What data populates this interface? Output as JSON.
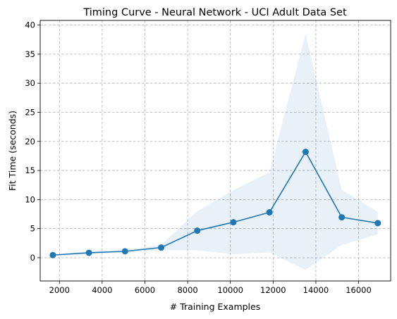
{
  "chart_data": {
    "type": "line",
    "title": "Timing Curve - Neural Network - UCI Adult Data Set",
    "xlabel": "# Training Examples",
    "ylabel": "Fit Time (seconds)",
    "xlim": [
      1100,
      17500
    ],
    "ylim": [
      -4,
      40.8
    ],
    "xticks": [
      2000,
      4000,
      6000,
      8000,
      10000,
      12000,
      14000,
      16000
    ],
    "yticks": [
      0,
      5,
      10,
      15,
      20,
      25,
      30,
      35,
      40
    ],
    "grid": true,
    "grid_style": "dashed",
    "series": [
      {
        "color": "#1f77b4",
        "band_color": "#1f77b4",
        "x": [
          1690,
          3380,
          5070,
          6760,
          8450,
          10140,
          11830,
          13520,
          15210,
          16900
        ],
        "y": [
          0.45,
          0.85,
          1.1,
          1.75,
          4.65,
          6.1,
          7.8,
          18.2,
          6.95,
          5.95
        ],
        "y_lower": [
          0.35,
          0.6,
          0.9,
          1.3,
          1.3,
          0.6,
          0.9,
          -2.1,
          2.2,
          4.0
        ],
        "y_upper": [
          0.55,
          1.1,
          1.3,
          2.2,
          8.0,
          11.6,
          14.7,
          38.5,
          11.7,
          7.9
        ]
      }
    ]
  }
}
